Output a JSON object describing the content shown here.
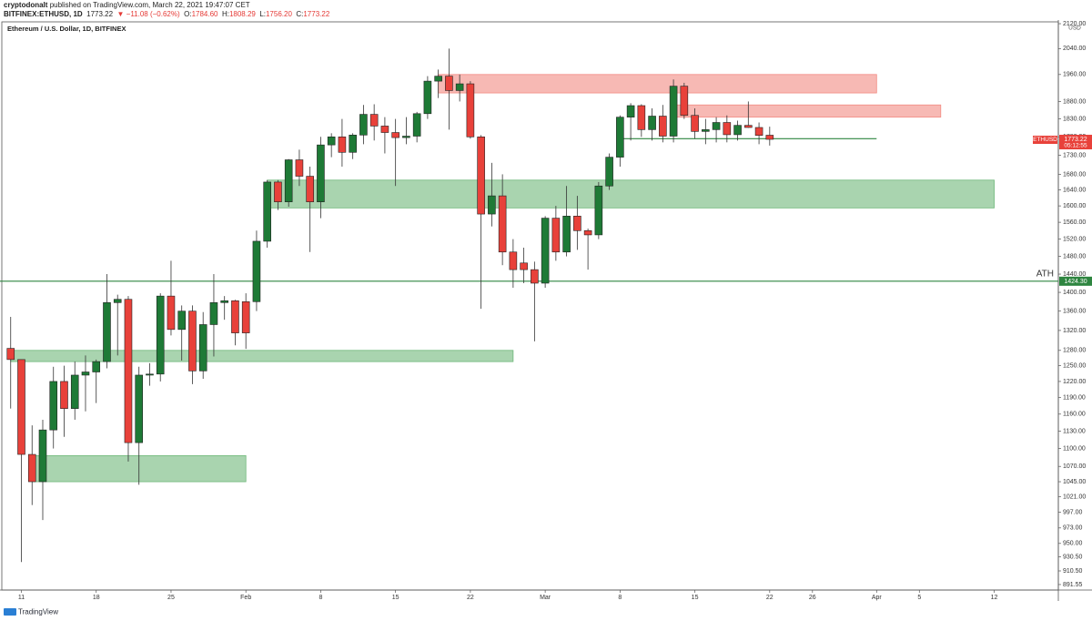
{
  "header": {
    "publisher": "cryptodonalt",
    "published": "published on TradingView.com, March 22, 2021 19:47:07 CET",
    "symbol": "BITFINEX:ETHUSD, 1D",
    "last": "1773.22",
    "change": "▼ −11.08 (−0.62%)",
    "open_label": "O:",
    "open": "1784.60",
    "high_label": "H:",
    "high": "1808.29",
    "low_label": "L:",
    "low": "1756.20",
    "close_label": "C:",
    "close": "1773.22"
  },
  "footer": {
    "brand": "TradingView"
  },
  "chart_data": {
    "type": "candlestick",
    "title": "Ethereum / U.S. Dollar, 1D, BITFINEX",
    "currency": "USD",
    "log_scale": true,
    "grid": false,
    "up_color": "#1e7a36",
    "down_color": "#e8413a",
    "x": [
      "2021-01-10",
      "2021-01-11",
      "2021-01-12",
      "2021-01-13",
      "2021-01-14",
      "2021-01-15",
      "2021-01-16",
      "2021-01-17",
      "2021-01-18",
      "2021-01-19",
      "2021-01-20",
      "2021-01-21",
      "2021-01-22",
      "2021-01-23",
      "2021-01-24",
      "2021-01-25",
      "2021-01-26",
      "2021-01-27",
      "2021-01-28",
      "2021-01-29",
      "2021-01-30",
      "2021-01-31",
      "2021-02-01",
      "2021-02-02",
      "2021-02-03",
      "2021-02-04",
      "2021-02-05",
      "2021-02-06",
      "2021-02-07",
      "2021-02-08",
      "2021-02-09",
      "2021-02-10",
      "2021-02-11",
      "2021-02-12",
      "2021-02-13",
      "2021-02-14",
      "2021-02-15",
      "2021-02-16",
      "2021-02-17",
      "2021-02-18",
      "2021-02-19",
      "2021-02-20",
      "2021-02-21",
      "2021-02-22",
      "2021-02-23",
      "2021-02-24",
      "2021-02-25",
      "2021-02-26",
      "2021-02-27",
      "2021-02-28",
      "2021-03-01",
      "2021-03-02",
      "2021-03-03",
      "2021-03-04",
      "2021-03-05",
      "2021-03-06",
      "2021-03-07",
      "2021-03-08",
      "2021-03-09",
      "2021-03-10",
      "2021-03-11",
      "2021-03-12",
      "2021-03-13",
      "2021-03-14",
      "2021-03-15",
      "2021-03-16",
      "2021-03-17",
      "2021-03-18",
      "2021-03-19",
      "2021-03-20",
      "2021-03-21",
      "2021-03-22"
    ],
    "open": [
      1284,
      1262,
      1090,
      1045,
      1132,
      1220,
      1170,
      1232,
      1238,
      1258,
      1378,
      1385,
      1110,
      1232,
      1234,
      1392,
      1322,
      1360,
      1240,
      1332,
      1378,
      1382,
      1380,
      1380,
      1515,
      1660,
      1610,
      1718,
      1675,
      1610,
      1758,
      1780,
      1738,
      1785,
      1843,
      1810,
      1792,
      1778,
      1782,
      1845,
      1940,
      1955,
      1912,
      1932,
      1780,
      1580,
      1625,
      1490,
      1465,
      1450,
      1420,
      1570,
      1490,
      1575,
      1540,
      1530,
      1650,
      1725,
      1835,
      1868,
      1800,
      1838,
      1782,
      1925,
      1840,
      1795,
      1800,
      1820,
      1786,
      1812,
      1806,
      1784.6
    ],
    "high": [
      1348,
      1262,
      1140,
      1150,
      1248,
      1250,
      1258,
      1270,
      1262,
      1440,
      1395,
      1392,
      1248,
      1255,
      1398,
      1470,
      1372,
      1372,
      1358,
      1440,
      1392,
      1384,
      1398,
      1540,
      1665,
      1665,
      1720,
      1745,
      1700,
      1780,
      1790,
      1830,
      1790,
      1870,
      1872,
      1835,
      1830,
      1835,
      1850,
      1955,
      1975,
      2040,
      1960,
      1940,
      1785,
      1710,
      1680,
      1520,
      1500,
      1468,
      1575,
      1600,
      1650,
      1625,
      1545,
      1660,
      1735,
      1840,
      1875,
      1872,
      1860,
      1870,
      1945,
      1935,
      1860,
      1830,
      1835,
      1840,
      1825,
      1880,
      1820,
      1808.29
    ],
    "low": [
      1170,
      923,
      1008,
      985,
      1100,
      1120,
      1150,
      1165,
      1180,
      1245,
      1270,
      1078,
      1040,
      1212,
      1220,
      1310,
      1260,
      1215,
      1225,
      1268,
      1342,
      1290,
      1283,
      1360,
      1500,
      1590,
      1598,
      1650,
      1490,
      1570,
      1725,
      1700,
      1720,
      1760,
      1770,
      1735,
      1650,
      1760,
      1765,
      1830,
      1890,
      1800,
      1880,
      1775,
      1365,
      1550,
      1460,
      1410,
      1420,
      1298,
      1410,
      1470,
      1480,
      1495,
      1450,
      1520,
      1640,
      1700,
      1770,
      1780,
      1770,
      1765,
      1765,
      1830,
      1775,
      1760,
      1765,
      1765,
      1770,
      1805,
      1760,
      1756.2
    ],
    "close": [
      1262,
      1090,
      1045,
      1132,
      1220,
      1170,
      1232,
      1238,
      1258,
      1378,
      1385,
      1110,
      1232,
      1234,
      1392,
      1322,
      1360,
      1240,
      1332,
      1378,
      1382,
      1315,
      1315,
      1515,
      1660,
      1610,
      1718,
      1675,
      1610,
      1758,
      1780,
      1738,
      1785,
      1843,
      1810,
      1792,
      1778,
      1782,
      1845,
      1940,
      1955,
      1912,
      1932,
      1780,
      1580,
      1625,
      1490,
      1450,
      1450,
      1420,
      1570,
      1490,
      1575,
      1540,
      1530,
      1650,
      1725,
      1835,
      1868,
      1800,
      1838,
      1782,
      1925,
      1840,
      1795,
      1800,
      1820,
      1786,
      1812,
      1806,
      1784,
      1773.22
    ],
    "xlim": [
      "2021-01-09",
      "2021-04-18"
    ],
    "xticks": [
      {
        "value": "2021-01-11",
        "label": "11"
      },
      {
        "value": "2021-01-18",
        "label": "18"
      },
      {
        "value": "2021-01-25",
        "label": "25"
      },
      {
        "value": "2021-02-01",
        "label": "Feb"
      },
      {
        "value": "2021-02-08",
        "label": "8"
      },
      {
        "value": "2021-02-15",
        "label": "15"
      },
      {
        "value": "2021-02-22",
        "label": "22"
      },
      {
        "value": "2021-03-01",
        "label": "Mar"
      },
      {
        "value": "2021-03-08",
        "label": "8"
      },
      {
        "value": "2021-03-15",
        "label": "15"
      },
      {
        "value": "2021-03-22",
        "label": "22"
      },
      {
        "value": "2021-03-26",
        "label": "26"
      },
      {
        "value": "2021-04-01",
        "label": "Apr"
      },
      {
        "value": "2021-04-05",
        "label": "5"
      },
      {
        "value": "2021-04-12",
        "label": "12"
      }
    ],
    "ylim": [
      884,
      2132
    ],
    "yticks": [
      {
        "value": 2120,
        "label": "2120.00"
      },
      {
        "value": 2040,
        "label": "2040.00"
      },
      {
        "value": 1960,
        "label": "1960.00"
      },
      {
        "value": 1880,
        "label": "1880.00"
      },
      {
        "value": 1830,
        "label": "1830.00"
      },
      {
        "value": 1780,
        "label": "1780.00"
      },
      {
        "value": 1730,
        "label": "1730.00"
      },
      {
        "value": 1680,
        "label": "1680.00"
      },
      {
        "value": 1640,
        "label": "1640.00"
      },
      {
        "value": 1600,
        "label": "1600.00"
      },
      {
        "value": 1560,
        "label": "1560.00"
      },
      {
        "value": 1520,
        "label": "1520.00"
      },
      {
        "value": 1480,
        "label": "1480.00"
      },
      {
        "value": 1440,
        "label": "1440.00"
      },
      {
        "value": 1400,
        "label": "1400.00"
      },
      {
        "value": 1360,
        "label": "1360.00"
      },
      {
        "value": 1320,
        "label": "1320.00"
      },
      {
        "value": 1280,
        "label": "1280.00"
      },
      {
        "value": 1250,
        "label": "1250.00"
      },
      {
        "value": 1220,
        "label": "1220.00"
      },
      {
        "value": 1190,
        "label": "1190.00"
      },
      {
        "value": 1160,
        "label": "1160.00"
      },
      {
        "value": 1130,
        "label": "1130.00"
      },
      {
        "value": 1100,
        "label": "1100.00"
      },
      {
        "value": 1070,
        "label": "1070.00"
      },
      {
        "value": 1045,
        "label": "1045.00"
      },
      {
        "value": 1021,
        "label": "1021.00"
      },
      {
        "value": 997,
        "label": "997.00"
      },
      {
        "value": 973,
        "label": "973.00"
      },
      {
        "value": 950,
        "label": "950.00"
      },
      {
        "value": 930.5,
        "label": "930.50"
      },
      {
        "value": 910.5,
        "label": "910.50"
      },
      {
        "value": 891.55,
        "label": "891.55"
      }
    ],
    "zones": [
      {
        "x": [
          "2021-02-19",
          "2021-04-01"
        ],
        "y": [
          1905,
          1960
        ],
        "color": "#f28b82"
      },
      {
        "x": [
          "2021-03-13",
          "2021-04-07"
        ],
        "y": [
          1835,
          1870
        ],
        "color": "#f28b82"
      },
      {
        "x": [
          "2021-02-03",
          "2021-04-12"
        ],
        "y": [
          1595,
          1665
        ],
        "color": "#6fb87a"
      },
      {
        "x": [
          "2021-01-10",
          "2021-02-26"
        ],
        "y": [
          1258,
          1280
        ],
        "color": "#6fb87a"
      },
      {
        "x": [
          "2021-01-12",
          "2021-02-01"
        ],
        "y": [
          1045,
          1088
        ],
        "color": "#6fb87a"
      }
    ],
    "lines": [
      {
        "y": 1424.3,
        "value_label": "1424.30",
        "label": "ATH",
        "color": "#2e8540"
      },
      {
        "y": 1775,
        "x": [
          "2021-03-08",
          "2021-04-01"
        ],
        "color": "#2e8540"
      }
    ],
    "last_tag": {
      "symbol": "ETHUSD",
      "countdown": "05:12:55"
    }
  }
}
